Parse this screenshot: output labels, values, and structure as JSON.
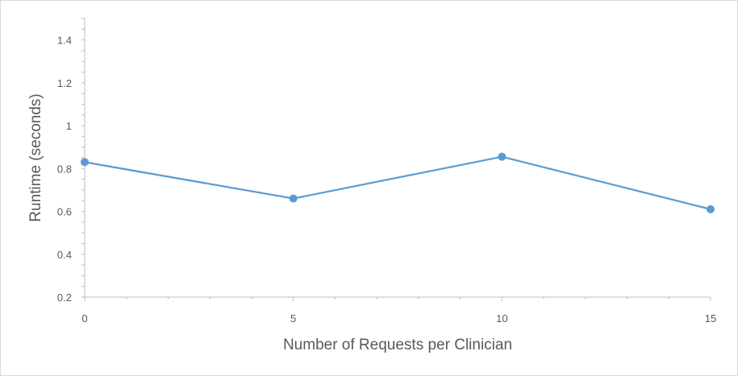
{
  "chart_data": {
    "type": "line",
    "title": "",
    "xlabel": "Number of Requests per Clinician",
    "ylabel": "Runtime (seconds)",
    "x": [
      0,
      5,
      10,
      15
    ],
    "x_ticks": [
      0,
      5,
      10,
      15
    ],
    "x_tick_labels": [
      "0",
      "5",
      "10",
      "15"
    ],
    "xlim": [
      0,
      15
    ],
    "ylim": [
      0.2,
      1.5
    ],
    "y_ticks": [
      0.2,
      0.4,
      0.6,
      0.8,
      1.0,
      1.2,
      1.4
    ],
    "y_tick_labels": [
      "0.2",
      "0.4",
      "0.6",
      "0.8",
      "1",
      "1.2",
      "1.4"
    ],
    "grid": false,
    "series": [
      {
        "values": [
          0.83,
          0.66,
          0.855,
          0.61
        ],
        "color": "#5b9bd5"
      }
    ]
  }
}
